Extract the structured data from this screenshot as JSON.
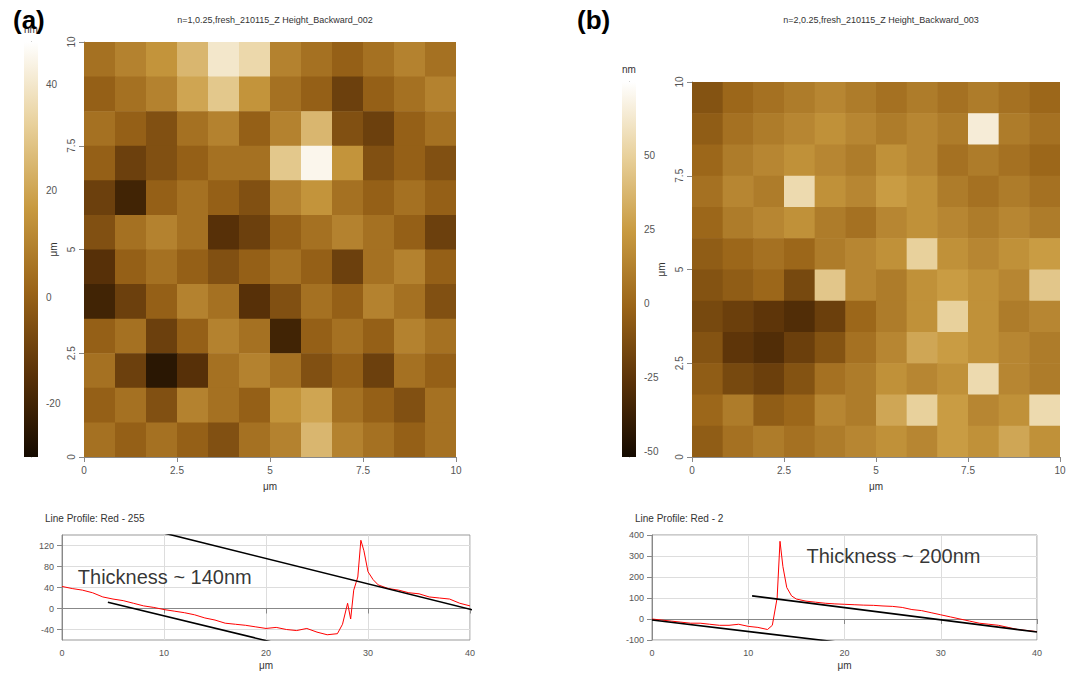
{
  "chart_data": [
    {
      "type": "heatmap",
      "panel": "(a)",
      "title": "n=1,0.25,fresh_210115_Z Height_Backward_002",
      "xlabel": "μm",
      "ylabel": "μm",
      "xlim": [
        0,
        10
      ],
      "ylim": [
        0,
        10
      ],
      "xticks": [
        0,
        2.5,
        5,
        7.5,
        10
      ],
      "yticks": [
        0,
        2.5,
        5,
        7.5,
        10
      ],
      "cells": [
        [
          5,
          10,
          15,
          25,
          40,
          35,
          10,
          5,
          0,
          5,
          10,
          5
        ],
        [
          0,
          5,
          10,
          20,
          30,
          15,
          5,
          0,
          -10,
          0,
          5,
          10
        ],
        [
          5,
          0,
          -5,
          5,
          10,
          0,
          10,
          25,
          -5,
          -10,
          0,
          5
        ],
        [
          0,
          -10,
          -5,
          0,
          5,
          5,
          30,
          45,
          15,
          -5,
          0,
          -5
        ],
        [
          -10,
          -20,
          0,
          5,
          0,
          -5,
          10,
          15,
          5,
          0,
          5,
          0
        ],
        [
          -5,
          5,
          10,
          5,
          -15,
          -10,
          0,
          5,
          10,
          5,
          0,
          -10
        ],
        [
          -15,
          0,
          5,
          0,
          -5,
          0,
          5,
          0,
          -10,
          5,
          10,
          0
        ],
        [
          -20,
          -10,
          0,
          10,
          5,
          -15,
          -5,
          5,
          0,
          10,
          5,
          -5
        ],
        [
          0,
          5,
          -10,
          0,
          10,
          5,
          -20,
          0,
          5,
          0,
          10,
          5
        ],
        [
          5,
          -10,
          -25,
          -15,
          5,
          10,
          5,
          -5,
          0,
          -10,
          5,
          0
        ],
        [
          0,
          5,
          -5,
          10,
          5,
          0,
          15,
          20,
          5,
          0,
          -5,
          5
        ],
        [
          5,
          0,
          5,
          0,
          -5,
          5,
          10,
          25,
          10,
          5,
          0,
          5
        ]
      ],
      "colorbar": {
        "label": "nm",
        "range": [
          -30,
          48
        ],
        "ticks": [
          -20,
          0,
          20,
          40
        ],
        "colors": [
          "#140a00",
          "#5a3208",
          "#9a6418",
          "#c89a40",
          "#e8d09a",
          "#ffffff"
        ]
      }
    },
    {
      "type": "line",
      "title": "Line Profile: Red - 255",
      "xlabel": "μm",
      "x": [
        0,
        1,
        2,
        3,
        4,
        5,
        6,
        7,
        8,
        9,
        10,
        11,
        12,
        13,
        14,
        15,
        16,
        17,
        18,
        19,
        20,
        21,
        22,
        23,
        24,
        25,
        26,
        27,
        27.5,
        28,
        28.3,
        28.6,
        29,
        29.3,
        29.6,
        30,
        30.5,
        31,
        32,
        33,
        34,
        35,
        36,
        37,
        38,
        39,
        40
      ],
      "values": [
        42,
        38,
        35,
        30,
        22,
        18,
        15,
        10,
        5,
        2,
        -2,
        -5,
        -8,
        -12,
        -18,
        -22,
        -28,
        -30,
        -32,
        -35,
        -38,
        -36,
        -40,
        -42,
        -38,
        -45,
        -50,
        -48,
        -30,
        10,
        -20,
        35,
        60,
        130,
        110,
        70,
        55,
        45,
        38,
        35,
        30,
        28,
        22,
        20,
        18,
        10,
        5
      ],
      "color": "#ff0000",
      "xlim": [
        0,
        40
      ],
      "ylim": [
        -60,
        140
      ],
      "xticks": [
        0,
        10,
        20,
        30,
        40
      ],
      "yticks": [
        -40,
        0,
        40,
        80,
        120
      ],
      "grid": true,
      "guide_lines": [
        {
          "points": [
            [
              0,
              192
            ],
            [
              43,
              -16
            ]
          ],
          "color": "#000000"
        },
        {
          "points": [
            [
              4.5,
              12
            ],
            [
              35,
              -132
            ]
          ],
          "color": "#000000"
        }
      ],
      "annotations": [
        {
          "text": "Thickness ~ 140nm",
          "x": 1.5,
          "y": 60
        }
      ]
    },
    {
      "type": "heatmap",
      "panel": "(b)",
      "title": "n=2,0.25,fresh_210115_Z Height_Backward_003",
      "xlabel": "μm",
      "ylabel": "μm",
      "xlim": [
        0,
        10
      ],
      "ylim": [
        0,
        10
      ],
      "xticks": [
        0,
        2.5,
        5,
        7.5,
        10
      ],
      "yticks": [
        0,
        2.5,
        5,
        7.5,
        10
      ],
      "cells": [
        [
          -10,
          0,
          5,
          10,
          15,
          10,
          5,
          10,
          5,
          10,
          5,
          0
        ],
        [
          -5,
          5,
          10,
          15,
          20,
          15,
          10,
          15,
          10,
          65,
          10,
          5
        ],
        [
          0,
          10,
          15,
          20,
          15,
          10,
          20,
          15,
          5,
          10,
          5,
          0
        ],
        [
          5,
          15,
          10,
          55,
          20,
          15,
          25,
          20,
          10,
          5,
          10,
          5
        ],
        [
          0,
          10,
          15,
          20,
          10,
          5,
          15,
          20,
          15,
          10,
          15,
          10
        ],
        [
          -5,
          0,
          5,
          0,
          10,
          15,
          20,
          50,
          20,
          15,
          20,
          25
        ],
        [
          -10,
          -5,
          0,
          -15,
          45,
          15,
          10,
          20,
          25,
          20,
          15,
          45
        ],
        [
          -15,
          -20,
          -25,
          -30,
          -20,
          0,
          10,
          20,
          50,
          20,
          10,
          15
        ],
        [
          -10,
          -25,
          -30,
          -20,
          -10,
          5,
          15,
          30,
          25,
          20,
          15,
          10
        ],
        [
          -5,
          -15,
          -20,
          -10,
          5,
          10,
          20,
          15,
          20,
          55,
          15,
          10
        ],
        [
          0,
          10,
          -5,
          0,
          15,
          10,
          30,
          50,
          25,
          15,
          20,
          55
        ],
        [
          -5,
          5,
          10,
          5,
          10,
          15,
          20,
          15,
          25,
          20,
          30,
          20
        ]
      ],
      "colorbar": {
        "label": "nm",
        "range": [
          -52,
          75
        ],
        "ticks": [
          -50,
          -25,
          0,
          25,
          50
        ],
        "colors": [
          "#140a00",
          "#5a3208",
          "#9a6418",
          "#c89a40",
          "#e8d09a",
          "#ffffff"
        ]
      }
    },
    {
      "type": "line",
      "title": "Line Profile: Red - 2",
      "xlabel": "μm",
      "x": [
        0,
        1,
        2,
        3,
        4,
        5,
        6,
        7,
        8,
        9,
        10,
        11,
        12,
        12.5,
        13,
        13.3,
        13.6,
        14,
        14.5,
        15,
        16,
        17,
        18,
        19,
        20,
        21,
        22,
        23,
        24,
        25,
        26,
        27,
        28,
        29,
        30,
        31,
        32,
        33,
        34,
        35,
        36,
        37,
        38,
        39,
        40
      ],
      "values": [
        0,
        -5,
        -10,
        -15,
        -20,
        -20,
        -25,
        -30,
        -30,
        -25,
        -35,
        -40,
        -50,
        -30,
        100,
        370,
        250,
        150,
        110,
        95,
        85,
        80,
        75,
        72,
        70,
        68,
        66,
        65,
        62,
        60,
        55,
        45,
        40,
        30,
        20,
        10,
        0,
        -10,
        -20,
        -25,
        -30,
        -40,
        -50,
        -55,
        -60
      ],
      "color": "#ff0000",
      "xlim": [
        0,
        40
      ],
      "ylim": [
        -100,
        400
      ],
      "xticks": [
        0,
        10,
        20,
        30,
        40
      ],
      "yticks": [
        -100,
        0,
        100,
        200,
        300,
        400
      ],
      "grid": true,
      "guide_lines": [
        {
          "points": [
            [
              10.4,
              110
            ],
            [
              40,
              -62
            ]
          ],
          "color": "#000000"
        },
        {
          "points": [
            [
              0,
              -5
            ],
            [
              34.9,
              -195
            ]
          ],
          "color": "#000000"
        }
      ],
      "annotations": [
        {
          "text": "Thickness ~ 200nm",
          "x": 16,
          "y": 300
        }
      ]
    }
  ]
}
